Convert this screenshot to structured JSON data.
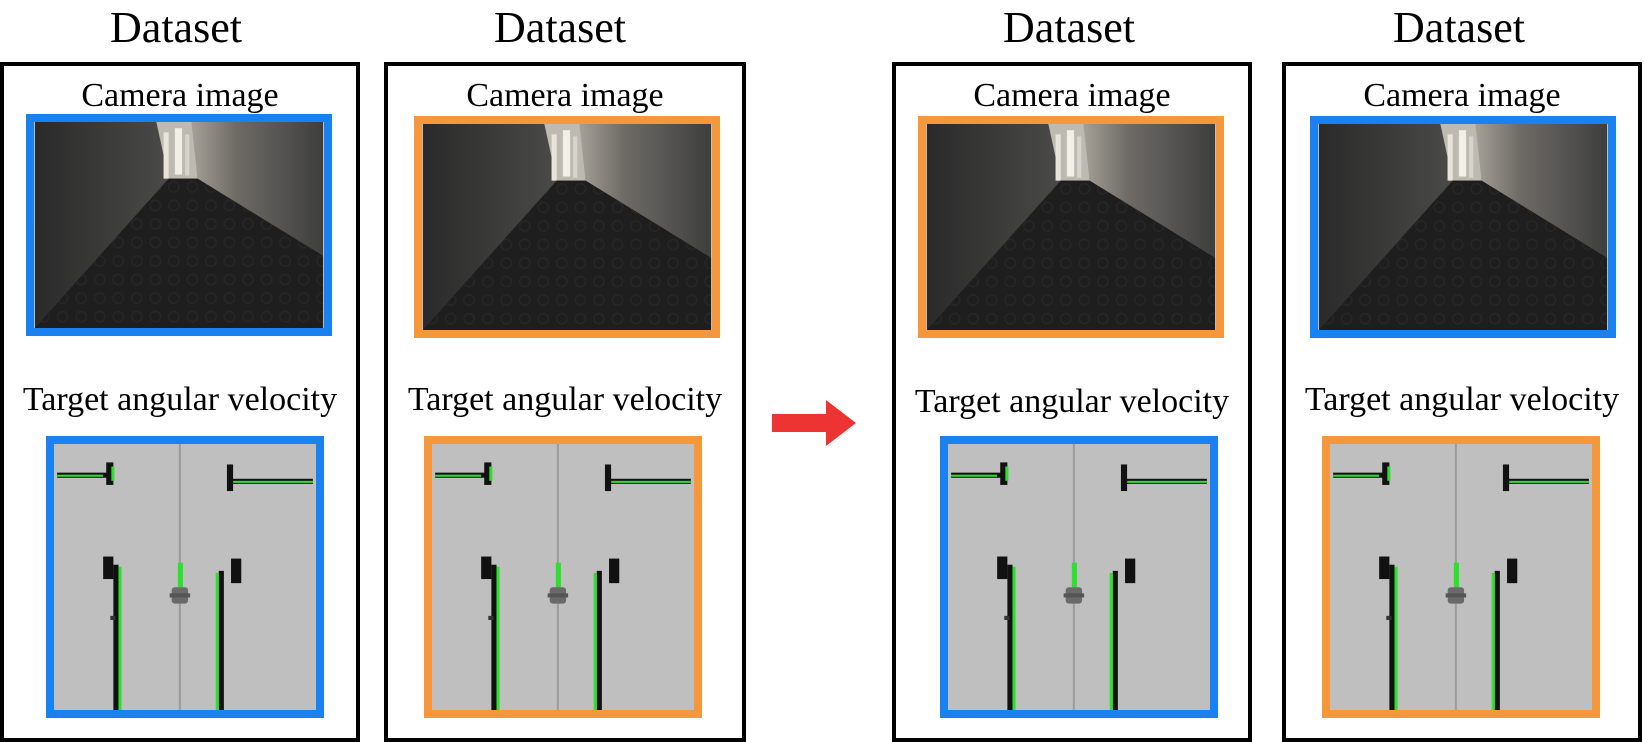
{
  "colors": {
    "blue": "#1a82f0",
    "orange": "#f5973a",
    "arrow": "#ee3333"
  },
  "arrow_icon": "right-arrow-icon",
  "panels": [
    {
      "title": "Dataset",
      "camera_label": "Camera image",
      "velocity_label": "Target angular velocity",
      "camera_frame": "blue",
      "velocity_frame": "blue"
    },
    {
      "title": "Dataset",
      "camera_label": "Camera image",
      "velocity_label": "Target angular velocity",
      "camera_frame": "orange",
      "velocity_frame": "orange"
    },
    {
      "title": "Dataset",
      "camera_label": "Camera image",
      "velocity_label": "Target angular velocity",
      "camera_frame": "orange",
      "velocity_frame": "blue"
    },
    {
      "title": "Dataset",
      "camera_label": "Camera image",
      "velocity_label": "Target angular velocity",
      "camera_frame": "blue",
      "velocity_frame": "orange"
    }
  ]
}
